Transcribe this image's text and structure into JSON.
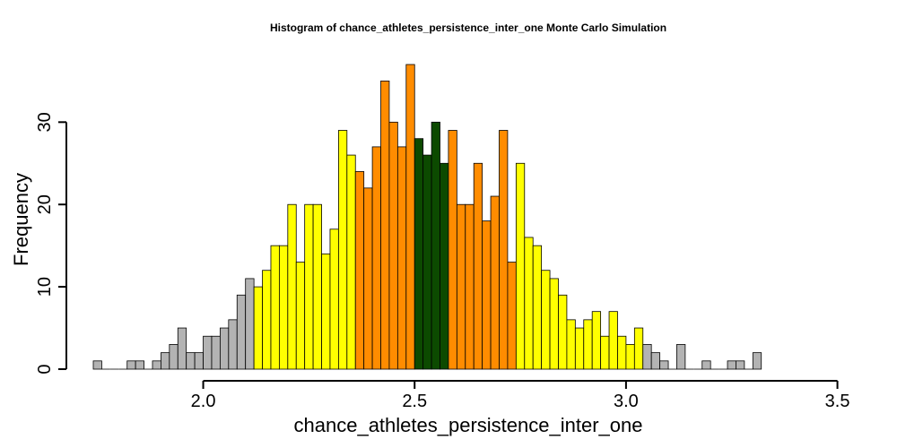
{
  "chart_data": {
    "type": "bar",
    "title": "Histogram of  chance_athletes_persistence_inter_one  Monte Carlo Simulation",
    "xlabel": "chance_athletes_persistence_inter_one",
    "ylabel": "Frequency",
    "bin_start": 1.74,
    "bin_width": 0.02,
    "xlim": [
      1.74,
      3.52
    ],
    "ylim": [
      0,
      37
    ],
    "x_ticks": [
      2.0,
      2.5,
      3.0,
      3.5
    ],
    "x_tick_labels": [
      "2.0",
      "2.5",
      "3.0",
      "3.5"
    ],
    "y_ticks": [
      0,
      10,
      20,
      30
    ],
    "y_tick_labels": [
      "0",
      "10",
      "20",
      "30"
    ],
    "values": [
      1,
      0,
      0,
      0,
      1,
      1,
      0,
      1,
      2,
      3,
      5,
      2,
      2,
      4,
      4,
      5,
      6,
      9,
      11,
      10,
      12,
      15,
      15,
      20,
      13,
      20,
      20,
      14,
      17,
      29,
      26,
      24,
      22,
      27,
      35,
      30,
      27,
      37,
      28,
      26,
      30,
      25,
      29,
      20,
      20,
      25,
      18,
      21,
      29,
      13,
      25,
      16,
      15,
      12,
      11,
      9,
      6,
      5,
      6,
      7,
      4,
      7,
      4,
      3,
      5,
      3,
      2,
      1,
      0,
      3,
      0,
      0,
      1,
      0,
      0,
      1,
      1,
      0,
      2
    ],
    "colors": {
      "gray": "#b3b3b3",
      "yellow": "#ffff00",
      "orange": "#ff8c00",
      "green": "#0c4a00"
    },
    "color_ranges": [
      {
        "color": "gray",
        "from": 1.74,
        "to": 2.12
      },
      {
        "color": "yellow",
        "from": 2.12,
        "to": 2.36
      },
      {
        "color": "orange",
        "from": 2.36,
        "to": 2.5
      },
      {
        "color": "green",
        "from": 2.5,
        "to": 2.58
      },
      {
        "color": "orange",
        "from": 2.58,
        "to": 2.74
      },
      {
        "color": "yellow",
        "from": 2.74,
        "to": 3.04
      },
      {
        "color": "gray",
        "from": 3.04,
        "to": 3.52
      }
    ]
  }
}
